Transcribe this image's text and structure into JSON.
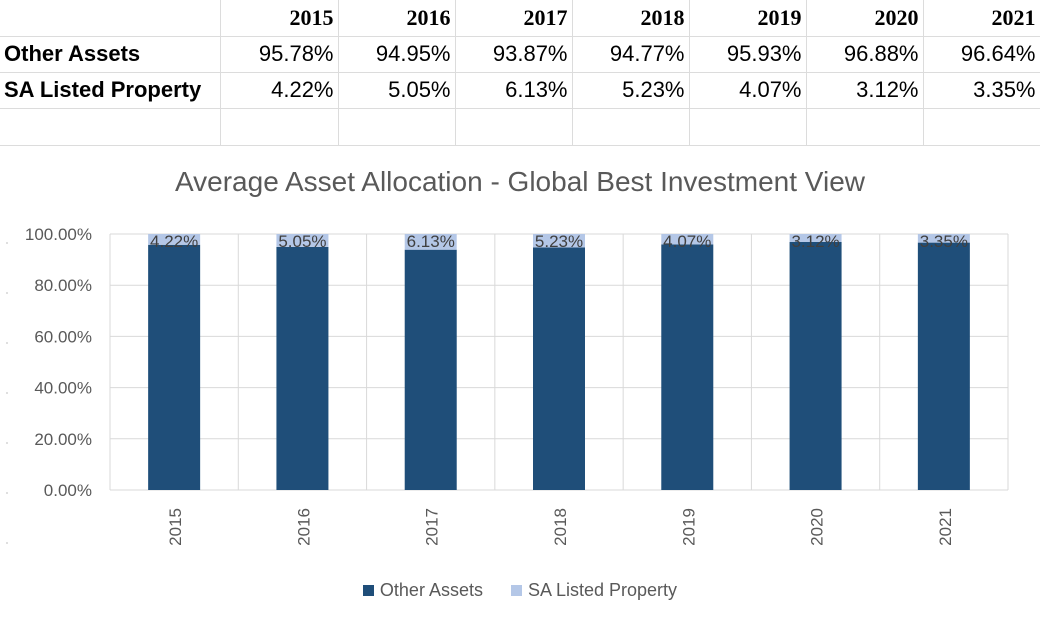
{
  "table": {
    "header": [
      "",
      "2015",
      "2016",
      "2017",
      "2018",
      "2019",
      "2020",
      "2021"
    ],
    "rows": [
      {
        "label": "Other Assets",
        "cells": [
          "95.78%",
          "94.95%",
          "93.87%",
          "94.77%",
          "95.93%",
          "96.88%",
          "96.64%"
        ]
      },
      {
        "label": "SA Listed Property",
        "cells": [
          "4.22%",
          "5.05%",
          "6.13%",
          "5.23%",
          "4.07%",
          "3.12%",
          "3.35%"
        ]
      }
    ]
  },
  "chart_data": {
    "type": "bar",
    "stacked": true,
    "title": "Average Asset Allocation - Global Best Investment View",
    "categories": [
      "2015",
      "2016",
      "2017",
      "2018",
      "2019",
      "2020",
      "2021"
    ],
    "series": [
      {
        "name": "Other Assets",
        "color": "#1f4e79",
        "values": [
          95.78,
          94.95,
          93.87,
          94.77,
          95.93,
          96.88,
          96.64
        ],
        "show_labels": false
      },
      {
        "name": "SA Listed Property",
        "color": "#b4c7e7",
        "values": [
          4.22,
          5.05,
          6.13,
          5.23,
          4.07,
          3.12,
          3.35
        ],
        "show_labels": true
      }
    ],
    "data_labels": [
      "4.22%",
      "5.05%",
      "6.13%",
      "5.23%",
      "4.07%",
      "3.12%",
      "3.35%"
    ],
    "y_ticks": [
      "0.00%",
      "20.00%",
      "40.00%",
      "60.00%",
      "80.00%",
      "100.00%"
    ],
    "ylim": [
      0,
      100
    ],
    "grid": true,
    "legend": "bottom"
  }
}
